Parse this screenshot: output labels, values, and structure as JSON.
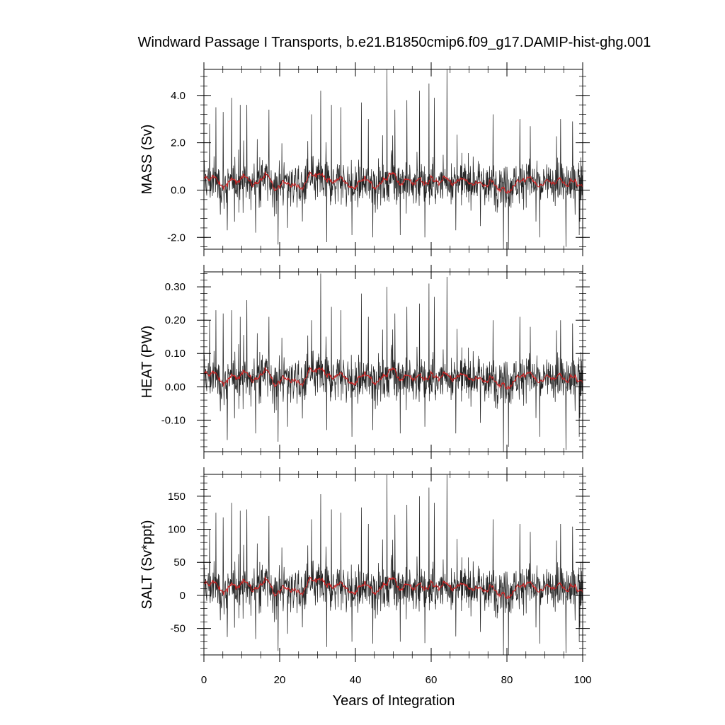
{
  "chart_data": {
    "type": "line",
    "title": "Windward Passage I Transports, b.e21.B1850cmip6.f09_g17.DAMIP-hist-ghg.001",
    "xlabel": "Years of Integration",
    "xlim": [
      0,
      100
    ],
    "xticks": [
      0,
      20,
      40,
      60,
      80,
      100
    ],
    "xtick_labels": [
      "0",
      "20",
      "40",
      "60",
      "80",
      "100"
    ],
    "series_colors": {
      "monthly": "#000000",
      "smoothed": "#cc2222"
    },
    "panels": [
      {
        "ylabel": "MASS (Sv)",
        "ylim": [
          -2.5,
          5.1
        ],
        "yticks": [
          -2,
          0,
          2,
          4
        ],
        "ytick_labels": [
          "-2.0",
          "0.0",
          "2.0",
          "4.0"
        ],
        "yminor": 0.4,
        "mean": 0.3,
        "noise": 0.85,
        "smooth_amp": 0.28,
        "spikes": [
          [
            1.5,
            2.8
          ],
          [
            3.2,
            3.5
          ],
          [
            5.1,
            3.3
          ],
          [
            7.3,
            3.9
          ],
          [
            9.6,
            3.6
          ],
          [
            11.3,
            3.6
          ],
          [
            17.2,
            3.4
          ],
          [
            28.4,
            3.2
          ],
          [
            30.8,
            4.2
          ],
          [
            33.7,
            3.6
          ],
          [
            36.2,
            3.5
          ],
          [
            41.6,
            3.7
          ],
          [
            43.4,
            3.0
          ],
          [
            48.3,
            5.1
          ],
          [
            50.4,
            3.4
          ],
          [
            53.6,
            3.8
          ],
          [
            56.9,
            4.2
          ],
          [
            59.4,
            4.5
          ],
          [
            60.8,
            3.9
          ],
          [
            64.2,
            5.1
          ],
          [
            76.3,
            3.2
          ],
          [
            83.4,
            3.0
          ],
          [
            86.2,
            2.7
          ],
          [
            94.2,
            3.0
          ],
          [
            97.3,
            2.9
          ],
          [
            6.2,
            -1.7
          ],
          [
            13.7,
            -1.8
          ],
          [
            22.1,
            -1.6
          ],
          [
            32.4,
            -2.2
          ],
          [
            39.1,
            -1.9
          ],
          [
            44.6,
            -2.0
          ],
          [
            51.8,
            -1.9
          ],
          [
            58.3,
            -2.0
          ],
          [
            66.5,
            -1.7
          ],
          [
            79.1,
            -2.5
          ],
          [
            80.4,
            -2.5
          ],
          [
            88.7,
            -2.0
          ],
          [
            95.6,
            -2.4
          ],
          [
            99.1,
            -1.9
          ]
        ]
      },
      {
        "ylabel": "HEAT (PW)",
        "ylim": [
          -0.195,
          0.345
        ],
        "yticks": [
          -0.1,
          0,
          0.1,
          0.2,
          0.3
        ],
        "ytick_labels": [
          "-0.10",
          "0.00",
          "0.10",
          "0.20",
          "0.30"
        ],
        "yminor": 0.02,
        "mean": 0.025,
        "noise": 0.062,
        "smooth_amp": 0.022,
        "spikes": [
          [
            1.5,
            0.2
          ],
          [
            3.2,
            0.23
          ],
          [
            5.1,
            0.22
          ],
          [
            7.3,
            0.23
          ],
          [
            9.6,
            0.21
          ],
          [
            11.3,
            0.26
          ],
          [
            17.2,
            0.21
          ],
          [
            28.4,
            0.2
          ],
          [
            30.8,
            0.34
          ],
          [
            33.7,
            0.24
          ],
          [
            36.2,
            0.23
          ],
          [
            41.6,
            0.28
          ],
          [
            43.4,
            0.21
          ],
          [
            48.3,
            0.3
          ],
          [
            50.4,
            0.22
          ],
          [
            53.6,
            0.24
          ],
          [
            56.9,
            0.25
          ],
          [
            59.4,
            0.31
          ],
          [
            60.8,
            0.27
          ],
          [
            64.2,
            0.33
          ],
          [
            76.3,
            0.2
          ],
          [
            83.4,
            0.21
          ],
          [
            86.2,
            0.18
          ],
          [
            94.2,
            0.2
          ],
          [
            97.3,
            0.19
          ],
          [
            6.2,
            -0.16
          ],
          [
            13.7,
            -0.14
          ],
          [
            22.1,
            -0.12
          ],
          [
            32.4,
            -0.13
          ],
          [
            39.1,
            -0.15
          ],
          [
            44.6,
            -0.13
          ],
          [
            51.8,
            -0.14
          ],
          [
            58.3,
            -0.12
          ],
          [
            66.5,
            -0.14
          ],
          [
            79.1,
            -0.195
          ],
          [
            80.4,
            -0.18
          ],
          [
            88.7,
            -0.15
          ],
          [
            95.6,
            -0.19
          ],
          [
            99.1,
            -0.15
          ]
        ]
      },
      {
        "ylabel": "SALT (Sv*ppt)",
        "ylim": [
          -90,
          183
        ],
        "yticks": [
          -50,
          0,
          50,
          100,
          150
        ],
        "ytick_labels": [
          "-50",
          "0",
          "50",
          "100",
          "150"
        ],
        "yminor": 10,
        "mean": 11,
        "noise": 31,
        "smooth_amp": 10,
        "spikes": [
          [
            1.5,
            100
          ],
          [
            3.2,
            125
          ],
          [
            5.1,
            118
          ],
          [
            7.3,
            140
          ],
          [
            9.6,
            128
          ],
          [
            11.3,
            130
          ],
          [
            17.2,
            120
          ],
          [
            28.4,
            115
          ],
          [
            30.8,
            153
          ],
          [
            33.7,
            130
          ],
          [
            36.2,
            125
          ],
          [
            41.6,
            133
          ],
          [
            43.4,
            108
          ],
          [
            48.3,
            182
          ],
          [
            50.4,
            122
          ],
          [
            53.6,
            137
          ],
          [
            56.9,
            150
          ],
          [
            59.4,
            163
          ],
          [
            60.8,
            140
          ],
          [
            64.2,
            182
          ],
          [
            76.3,
            115
          ],
          [
            83.4,
            108
          ],
          [
            86.2,
            96
          ],
          [
            94.2,
            108
          ],
          [
            97.3,
            104
          ],
          [
            6.2,
            -63
          ],
          [
            13.7,
            -66
          ],
          [
            22.1,
            -58
          ],
          [
            32.4,
            -78
          ],
          [
            39.1,
            -70
          ],
          [
            44.6,
            -73
          ],
          [
            51.8,
            -70
          ],
          [
            58.3,
            -72
          ],
          [
            66.5,
            -62
          ],
          [
            79.1,
            -90
          ],
          [
            80.4,
            -90
          ],
          [
            88.7,
            -73
          ],
          [
            95.6,
            -87
          ],
          [
            99.1,
            -70
          ]
        ]
      }
    ]
  }
}
